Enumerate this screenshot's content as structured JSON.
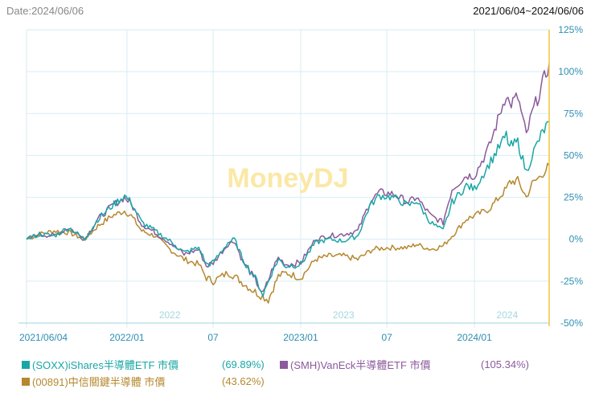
{
  "header": {
    "date_label": "Date:2024/06/06",
    "range_label": "2021/06/04~2024/06/06"
  },
  "watermark": "MoneyDJ",
  "colors": {
    "soxx": "#1aa6a5",
    "smh": "#8b5a9b",
    "tw00891": "#b5882e",
    "right_axis": "#f2c94c",
    "grid": "#d6eef2",
    "tick_text": "#2e8fb3",
    "watermark": "#fbe8a6"
  },
  "chart_data": {
    "type": "line",
    "x_range": [
      "2021-06-04",
      "2024-06-06"
    ],
    "ylim": [
      -50,
      125
    ],
    "y_unit": "%",
    "y_ticks": [
      "125%",
      "100%",
      "75%",
      "50%",
      "25%",
      "0%",
      "-25%",
      "-50%"
    ],
    "y_tick_values": [
      125,
      100,
      75,
      50,
      25,
      0,
      -25,
      -50
    ],
    "x_ticks_bottom": [
      {
        "date": "2021-06-04",
        "label": "2021/06/04"
      },
      {
        "date": "2022-01-01",
        "label": "2022/01"
      },
      {
        "date": "2022-07-01",
        "label": "07"
      },
      {
        "date": "2023-01-01",
        "label": "2023/01"
      },
      {
        "date": "2023-07-01",
        "label": "07"
      },
      {
        "date": "2024-01-01",
        "label": "2024/01"
      }
    ],
    "year_labels": [
      {
        "date": "2022-04-01",
        "label": "2022"
      },
      {
        "date": "2023-04-01",
        "label": "2023"
      },
      {
        "date": "2024-03-10",
        "label": "2024"
      }
    ],
    "grid": true,
    "legend_position": "bottom",
    "series": [
      {
        "name": "(SOXX)iShares半導體ETF 市價",
        "final_pct": "(69.89%)",
        "points": [
          [
            "2021-06-04",
            0
          ],
          [
            "2021-07-01",
            3
          ],
          [
            "2021-08-01",
            2
          ],
          [
            "2021-09-01",
            7
          ],
          [
            "2021-10-04",
            0
          ],
          [
            "2021-11-01",
            12
          ],
          [
            "2021-12-01",
            20
          ],
          [
            "2021-12-27",
            26
          ],
          [
            "2022-01-10",
            22
          ],
          [
            "2022-02-01",
            10
          ],
          [
            "2022-03-01",
            5
          ],
          [
            "2022-04-01",
            -1
          ],
          [
            "2022-05-01",
            -8
          ],
          [
            "2022-06-01",
            -5
          ],
          [
            "2022-06-17",
            -15
          ],
          [
            "2022-07-01",
            -14
          ],
          [
            "2022-08-01",
            -2
          ],
          [
            "2022-08-15",
            0
          ],
          [
            "2022-09-01",
            -12
          ],
          [
            "2022-09-20",
            -20
          ],
          [
            "2022-10-01",
            -25
          ],
          [
            "2022-10-14",
            -33
          ],
          [
            "2022-11-01",
            -20
          ],
          [
            "2022-11-15",
            -12
          ],
          [
            "2022-12-01",
            -16
          ],
          [
            "2023-01-01",
            -15
          ],
          [
            "2023-02-01",
            -2
          ],
          [
            "2023-03-01",
            0
          ],
          [
            "2023-04-01",
            -1
          ],
          [
            "2023-05-01",
            2
          ],
          [
            "2023-05-26",
            20
          ],
          [
            "2023-06-15",
            26
          ],
          [
            "2023-07-15",
            25
          ],
          [
            "2023-08-15",
            20
          ],
          [
            "2023-09-01",
            23
          ],
          [
            "2023-10-01",
            10
          ],
          [
            "2023-10-27",
            5
          ],
          [
            "2023-11-15",
            22
          ],
          [
            "2023-12-15",
            32
          ],
          [
            "2024-01-01",
            30
          ],
          [
            "2024-02-01",
            45
          ],
          [
            "2024-03-08",
            62
          ],
          [
            "2024-03-15",
            55
          ],
          [
            "2024-04-01",
            58
          ],
          [
            "2024-04-19",
            40
          ],
          [
            "2024-05-01",
            50
          ],
          [
            "2024-05-20",
            62
          ],
          [
            "2024-06-06",
            70
          ]
        ]
      },
      {
        "name": "(SMH)VanEck半導體ETF 市價",
        "final_pct": "(105.34%)",
        "points": [
          [
            "2021-06-04",
            0
          ],
          [
            "2021-07-01",
            3
          ],
          [
            "2021-08-01",
            2
          ],
          [
            "2021-09-01",
            7
          ],
          [
            "2021-10-04",
            0
          ],
          [
            "2021-11-01",
            12
          ],
          [
            "2021-12-01",
            20
          ],
          [
            "2021-12-27",
            25
          ],
          [
            "2022-01-10",
            21
          ],
          [
            "2022-02-01",
            9
          ],
          [
            "2022-03-01",
            4
          ],
          [
            "2022-04-01",
            -2
          ],
          [
            "2022-05-01",
            -9
          ],
          [
            "2022-06-01",
            -6
          ],
          [
            "2022-06-17",
            -16
          ],
          [
            "2022-07-01",
            -14
          ],
          [
            "2022-08-01",
            -3
          ],
          [
            "2022-08-15",
            -1
          ],
          [
            "2022-09-01",
            -13
          ],
          [
            "2022-09-20",
            -21
          ],
          [
            "2022-10-01",
            -26
          ],
          [
            "2022-10-14",
            -33
          ],
          [
            "2022-11-01",
            -19
          ],
          [
            "2022-11-15",
            -11
          ],
          [
            "2022-12-01",
            -15
          ],
          [
            "2023-01-01",
            -14
          ],
          [
            "2023-02-01",
            0
          ],
          [
            "2023-03-01",
            2
          ],
          [
            "2023-04-01",
            3
          ],
          [
            "2023-05-01",
            5
          ],
          [
            "2023-05-26",
            22
          ],
          [
            "2023-06-15",
            28
          ],
          [
            "2023-07-15",
            27
          ],
          [
            "2023-08-15",
            22
          ],
          [
            "2023-09-01",
            25
          ],
          [
            "2023-10-01",
            14
          ],
          [
            "2023-10-27",
            10
          ],
          [
            "2023-11-15",
            30
          ],
          [
            "2023-12-15",
            38
          ],
          [
            "2024-01-01",
            38
          ],
          [
            "2024-02-01",
            55
          ],
          [
            "2024-03-08",
            87
          ],
          [
            "2024-03-15",
            80
          ],
          [
            "2024-04-01",
            85
          ],
          [
            "2024-04-19",
            62
          ],
          [
            "2024-05-01",
            75
          ],
          [
            "2024-05-20",
            90
          ],
          [
            "2024-06-06",
            105
          ]
        ]
      },
      {
        "name": "(00891)中信關鍵半導體 市價",
        "final_pct": "(43.62%)",
        "points": [
          [
            "2021-06-04",
            0
          ],
          [
            "2021-07-01",
            3
          ],
          [
            "2021-08-01",
            5
          ],
          [
            "2021-09-01",
            4
          ],
          [
            "2021-10-04",
            0
          ],
          [
            "2021-11-01",
            8
          ],
          [
            "2021-12-01",
            14
          ],
          [
            "2021-12-27",
            17
          ],
          [
            "2022-01-10",
            14
          ],
          [
            "2022-02-01",
            5
          ],
          [
            "2022-03-01",
            2
          ],
          [
            "2022-04-01",
            -6
          ],
          [
            "2022-05-01",
            -12
          ],
          [
            "2022-06-01",
            -15
          ],
          [
            "2022-06-17",
            -23
          ],
          [
            "2022-07-01",
            -25
          ],
          [
            "2022-08-01",
            -20
          ],
          [
            "2022-08-15",
            -22
          ],
          [
            "2022-09-01",
            -26
          ],
          [
            "2022-09-20",
            -30
          ],
          [
            "2022-10-01",
            -32
          ],
          [
            "2022-10-25",
            -36
          ],
          [
            "2022-11-15",
            -22
          ],
          [
            "2022-12-01",
            -20
          ],
          [
            "2023-01-01",
            -23
          ],
          [
            "2023-02-01",
            -12
          ],
          [
            "2023-03-01",
            -10
          ],
          [
            "2023-04-01",
            -10
          ],
          [
            "2023-05-01",
            -12
          ],
          [
            "2023-06-01",
            -6
          ],
          [
            "2023-07-01",
            -5
          ],
          [
            "2023-08-15",
            -5
          ],
          [
            "2023-09-01",
            -3
          ],
          [
            "2023-10-01",
            -6
          ],
          [
            "2023-10-27",
            -4
          ],
          [
            "2023-11-15",
            2
          ],
          [
            "2023-12-15",
            12
          ],
          [
            "2024-01-01",
            14
          ],
          [
            "2024-02-01",
            18
          ],
          [
            "2024-03-08",
            30
          ],
          [
            "2024-03-15",
            34
          ],
          [
            "2024-04-01",
            35
          ],
          [
            "2024-04-19",
            25
          ],
          [
            "2024-05-01",
            33
          ],
          [
            "2024-05-20",
            38
          ],
          [
            "2024-06-06",
            44
          ]
        ]
      }
    ]
  }
}
